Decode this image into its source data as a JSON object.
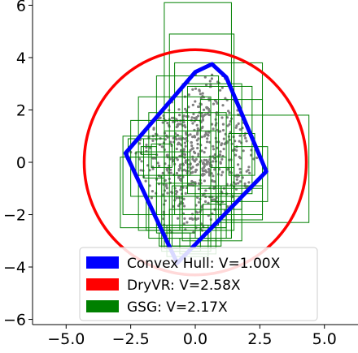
{
  "chart_data": {
    "type": "scatter",
    "title": "",
    "xlabel": "",
    "ylabel": "",
    "xlim": [
      -6.3,
      6.3
    ],
    "ylim": [
      -6.2,
      6.2
    ],
    "x_ticks": [
      -5.0,
      -2.5,
      0.0,
      2.5,
      5.0
    ],
    "x_tick_labels": [
      "−5.0",
      "−2.5",
      "0.0",
      "2.5",
      "5.0"
    ],
    "y_ticks": [
      -6,
      -4,
      -2,
      0,
      2,
      4,
      6
    ],
    "y_tick_labels": [
      "−6",
      "−4",
      "−2",
      "0",
      "2",
      "4",
      "6"
    ],
    "grid": false,
    "legend_position": "bottom-center",
    "colors": {
      "points": "#808080",
      "convex_hull": "#0000ff",
      "dryvr": "#ff0000",
      "gsg": "#008000",
      "axes": "#000000",
      "legend_border": "#cccccc"
    },
    "series": [
      {
        "name": "Convex Hull: V=1.00X",
        "kind": "polygon",
        "vertices": [
          [
            0.65,
            3.75
          ],
          [
            1.2,
            3.25
          ],
          [
            2.75,
            -0.35
          ],
          [
            -0.7,
            -3.85
          ],
          [
            -2.7,
            0.35
          ],
          [
            0.0,
            3.45
          ]
        ]
      },
      {
        "name": "DryVR: V=2.58X",
        "kind": "circle",
        "center": [
          0.0,
          0.0
        ],
        "radius": 4.3
      },
      {
        "name": "GSG: V=2.17X",
        "kind": "rectangles",
        "boxes": [
          [
            -1.2,
            1.4,
            -2.9,
            6.1
          ],
          [
            -1.0,
            1.5,
            -2.6,
            4.9
          ],
          [
            -0.8,
            2.6,
            -2.0,
            3.8
          ],
          [
            -1.5,
            0.9,
            -2.4,
            3.3
          ],
          [
            -0.5,
            1.8,
            -1.8,
            3.0
          ],
          [
            -2.2,
            0.6,
            -2.6,
            2.5
          ],
          [
            -0.3,
            2.2,
            -1.2,
            2.9
          ],
          [
            -2.5,
            0.2,
            -1.3,
            1.6
          ],
          [
            -1.8,
            1.2,
            -2.9,
            1.9
          ],
          [
            0.2,
            2.6,
            -1.0,
            2.4
          ],
          [
            -1.2,
            0.8,
            -3.3,
            1.2
          ],
          [
            0.8,
            4.4,
            -2.3,
            1.8
          ],
          [
            1.5,
            2.8,
            -1.5,
            0.6
          ],
          [
            -2.8,
            -0.5,
            -2.0,
            1.0
          ],
          [
            -2.0,
            -1.2,
            -0.6,
            0.9
          ],
          [
            -2.6,
            -2.0,
            0.2,
            0.9
          ],
          [
            -2.1,
            -1.5,
            0.3,
            0.6
          ],
          [
            -2.9,
            1.2,
            -2.5,
            0.2
          ],
          [
            -1.3,
            0.2,
            -3.4,
            -0.5
          ],
          [
            -0.9,
            1.0,
            -3.2,
            -0.9
          ],
          [
            -0.5,
            1.8,
            -3.0,
            -1.3
          ],
          [
            -1.0,
            0.6,
            -3.4,
            -1.8
          ],
          [
            0.0,
            1.4,
            -2.9,
            -2.0
          ],
          [
            -1.5,
            0.0,
            -2.7,
            -0.8
          ],
          [
            -1.1,
            0.5,
            -3.6,
            -2.4
          ],
          [
            0.3,
            1.2,
            -2.5,
            -1.6
          ],
          [
            1.0,
            2.6,
            -2.2,
            -0.9
          ],
          [
            1.3,
            2.3,
            -0.5,
            1.1
          ],
          [
            -1.9,
            -0.6,
            -2.6,
            -1.3
          ],
          [
            -1.4,
            -0.2,
            -3.2,
            -2.7
          ],
          [
            -0.6,
            0.8,
            -3.5,
            -2.9
          ],
          [
            -1.7,
            -0.9,
            -0.2,
            0.7
          ],
          [
            -2.3,
            -0.2,
            -0.5,
            0.4
          ],
          [
            0.6,
            1.5,
            -1.5,
            -0.2
          ]
        ]
      }
    ],
    "samples": {
      "name": "",
      "kind": "points",
      "description_count": 600
    }
  }
}
